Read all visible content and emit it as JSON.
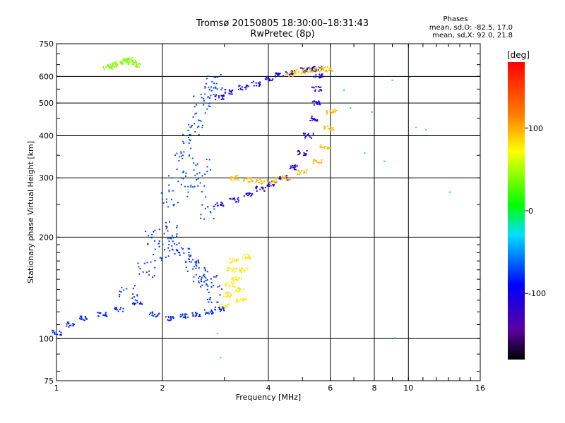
{
  "header": {
    "title": "Tromsø 20150805 18:30:00–18:31:43",
    "subtitle": "RwPretec (8p)",
    "phase_title": "Phases",
    "phase_o": "mean, sd,O: -82.5, 17.0",
    "phase_x": "mean, sd,X:  92.0, 21.8"
  },
  "chart_data": {
    "type": "scatter",
    "xlabel": "Frequency [MHz]",
    "ylabel": "Stationary phase Virtual Height [km]",
    "xscale": "log",
    "yscale": "log",
    "xlim": [
      1,
      16
    ],
    "ylim": [
      75,
      750
    ],
    "xticks": [
      1,
      2,
      4,
      6,
      8,
      10,
      16
    ],
    "xtick_labels": [
      "1",
      "2",
      "4",
      "6",
      "8",
      "10",
      "16"
    ],
    "xgrid": [
      2,
      4,
      6,
      8,
      10
    ],
    "yticks": [
      75,
      100,
      200,
      300,
      400,
      500,
      600,
      750
    ],
    "ytick_labels": [
      "75",
      "100",
      "200",
      "300",
      "400",
      "500",
      "600",
      "750"
    ],
    "ygrid": [
      100,
      200,
      300,
      400,
      500,
      600
    ],
    "grid": true,
    "colorbar": {
      "label": "[deg]",
      "range": [
        -180,
        180
      ],
      "ticks": [
        100,
        0,
        -100
      ],
      "tick_labels": [
        "100",
        "0",
        "-100"
      ]
    },
    "series": [
      {
        "role": "O-trace F-layer",
        "phase": -110,
        "x": [
          2.9,
          3.2,
          3.5,
          3.8,
          4.1,
          4.4,
          4.7,
          5.0,
          5.2,
          5.35,
          5.45,
          5.5,
          5.55
        ],
        "y": [
          250,
          258,
          268,
          278,
          288,
          300,
          322,
          355,
          400,
          450,
          500,
          550,
          600
        ]
      },
      {
        "role": "O-trace upper loop",
        "phase": -100,
        "x": [
          2.9,
          3.1,
          3.4,
          3.7,
          4.0,
          4.3,
          4.6,
          5.0,
          5.3,
          5.5
        ],
        "y": [
          520,
          540,
          555,
          570,
          590,
          605,
          615,
          625,
          630,
          632
        ]
      },
      {
        "role": "X-trace F-layer",
        "phase": 95,
        "x": [
          3.2,
          3.5,
          3.8,
          4.1,
          4.5,
          5.0,
          5.5,
          5.8,
          5.95,
          6.05
        ],
        "y": [
          300,
          295,
          292,
          294,
          300,
          312,
          335,
          370,
          420,
          470
        ]
      },
      {
        "role": "X-trace top",
        "phase": 90,
        "x": [
          4.6,
          4.9,
          5.2,
          5.6,
          5.9
        ],
        "y": [
          610,
          618,
          625,
          630,
          630
        ]
      },
      {
        "role": "Spread F (2-3 MHz)",
        "phase": -70,
        "x": [
          2.1,
          2.2,
          2.3,
          2.4,
          2.5,
          2.6,
          2.7,
          2.8,
          2.5,
          2.6,
          2.7
        ],
        "y": [
          260,
          300,
          350,
          400,
          450,
          500,
          550,
          580,
          280,
          320,
          240
        ]
      },
      {
        "role": "Lower trace E/F1",
        "phase": -80,
        "x": [
          1.0,
          1.1,
          1.2,
          1.35,
          1.5,
          1.7,
          1.9,
          2.1,
          2.3,
          2.5,
          2.7,
          2.9
        ],
        "y": [
          104,
          110,
          115,
          118,
          122,
          128,
          118,
          115,
          117,
          118,
          120,
          122
        ]
      },
      {
        "role": "Spread cluster 1.6-3 MHz",
        "phase": -75,
        "x": [
          1.6,
          1.8,
          2.0,
          2.2,
          2.4,
          2.6,
          2.8,
          1.9,
          2.1,
          2.3,
          2.5,
          2.7
        ],
        "y": [
          140,
          160,
          180,
          190,
          170,
          150,
          135,
          200,
          210,
          175,
          160,
          145
        ]
      },
      {
        "role": "X cluster 3-3.5 MHz",
        "phase": 80,
        "x": [
          3.0,
          3.05,
          3.1,
          3.15,
          3.2,
          3.25,
          3.3,
          3.35,
          3.4,
          3.45
        ],
        "y": [
          125,
          135,
          145,
          160,
          170,
          150,
          140,
          130,
          160,
          175
        ]
      },
      {
        "role": "Top-left sporadic",
        "phase": 40,
        "x": [
          1.4,
          1.45,
          1.5,
          1.55,
          1.6,
          1.65,
          1.7
        ],
        "y": [
          640,
          650,
          660,
          665,
          670,
          660,
          650
        ]
      },
      {
        "role": "Scattered noise",
        "phase": 0,
        "x": [
          6.6,
          7.0,
          7.4,
          8.1,
          8.5,
          9.2,
          10.4,
          10.6,
          11.3,
          13.5,
          9.4,
          3.0,
          2.9
        ],
        "y": [
          540,
          480,
          360,
          470,
          340,
          580,
          600,
          420,
          420,
          270,
          100,
          88,
          102
        ]
      }
    ]
  }
}
